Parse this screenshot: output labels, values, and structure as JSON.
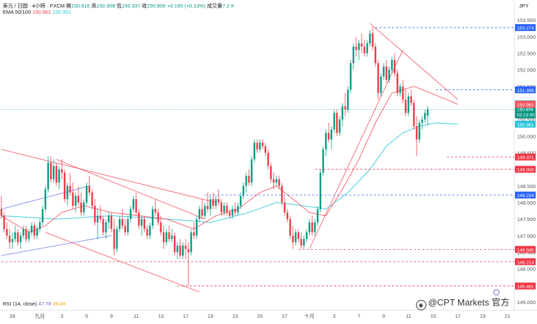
{
  "header": {
    "symbol_line": "美元 / 日圆 · 4小時 · FXCM",
    "open_label": "開",
    "open": "150.616",
    "high_label": "高",
    "high": "150.908",
    "low_label": "低",
    "low": "150.337",
    "close_label": "收",
    "close": "150.806",
    "change": "+0.190 (+0.13%)",
    "volume_label": "成交量",
    "volume": "7.2 K",
    "ema_label": "EMA 50/100",
    "ema50": "150.961",
    "ema100": "150.361",
    "rsi_label": "RSI (14, close)",
    "rsi_value": "47.78",
    "rsi_ma": "39.49",
    "currency": "JPY"
  },
  "watermark": {
    "text": "@CPT Markets 官方"
  },
  "colors": {
    "up": "#089981",
    "down": "#f23645",
    "ema50": "#f7525f",
    "ema100": "#26c6da",
    "trend_red": "#f23645",
    "channel_blue": "#5b6ee1",
    "level_blue": "#2962ff",
    "level_red": "#f23645"
  },
  "chart_data": {
    "type": "candlestick",
    "symbol": "USDJPY",
    "ylim": [
      144.75,
      153.65
    ],
    "y_ticks": [
      145.0,
      145.5,
      146.0,
      146.5,
      147.0,
      147.5,
      148.0,
      148.5,
      149.0,
      149.5,
      150.0,
      150.5,
      151.0,
      151.5,
      152.0,
      152.5,
      153.0,
      153.5
    ],
    "x_ticks": [
      {
        "label": "28",
        "i": 4
      },
      {
        "label": "九月",
        "i": 14
      },
      {
        "label": "3",
        "i": 22
      },
      {
        "label": "5",
        "i": 31
      },
      {
        "label": "9",
        "i": 40
      },
      {
        "label": "11",
        "i": 49
      },
      {
        "label": "13",
        "i": 58
      },
      {
        "label": "17",
        "i": 67
      },
      {
        "label": "19",
        "i": 76
      },
      {
        "label": "23",
        "i": 85
      },
      {
        "label": "25",
        "i": 94
      },
      {
        "label": "27",
        "i": 103
      },
      {
        "label": "十月",
        "i": 112
      },
      {
        "label": "3",
        "i": 121
      },
      {
        "label": "7",
        "i": 130
      },
      {
        "label": "9",
        "i": 139
      },
      {
        "label": "11",
        "i": 148
      },
      {
        "label": "15",
        "i": 157
      },
      {
        "label": "17",
        "i": 166
      },
      {
        "label": "19",
        "i": 175
      },
      {
        "label": "21",
        "i": 184
      }
    ],
    "candles": [
      [
        147.8,
        148.2,
        147.5,
        147.6
      ],
      [
        147.6,
        147.7,
        147.1,
        147.2
      ],
      [
        147.2,
        147.4,
        146.9,
        147.0
      ],
      [
        147.0,
        147.2,
        146.6,
        146.8
      ],
      [
        146.8,
        147.1,
        146.6,
        146.9
      ],
      [
        146.9,
        147.3,
        146.8,
        147.1
      ],
      [
        147.1,
        147.2,
        146.7,
        146.8
      ],
      [
        146.8,
        147.1,
        146.6,
        147.0
      ],
      [
        147.0,
        147.3,
        146.9,
        147.2
      ],
      [
        147.2,
        147.3,
        146.8,
        146.9
      ],
      [
        146.9,
        147.2,
        146.8,
        147.1
      ],
      [
        147.1,
        147.4,
        147.0,
        147.3
      ],
      [
        147.3,
        147.4,
        146.9,
        147.0
      ],
      [
        147.0,
        147.3,
        146.9,
        147.2
      ],
      [
        147.2,
        147.5,
        147.1,
        147.4
      ],
      [
        147.4,
        147.9,
        147.3,
        147.8
      ],
      [
        147.8,
        148.5,
        147.7,
        148.4
      ],
      [
        148.4,
        149.4,
        148.3,
        149.2
      ],
      [
        149.2,
        149.4,
        148.6,
        148.7
      ],
      [
        148.7,
        149.3,
        148.6,
        149.1
      ],
      [
        149.1,
        149.2,
        148.5,
        148.6
      ],
      [
        148.6,
        149.1,
        148.4,
        149.0
      ],
      [
        149.0,
        149.3,
        148.7,
        148.9
      ],
      [
        148.9,
        149.0,
        148.0,
        148.1
      ],
      [
        148.1,
        148.6,
        147.9,
        148.5
      ],
      [
        148.5,
        148.9,
        148.2,
        148.3
      ],
      [
        148.3,
        148.6,
        147.8,
        147.9
      ],
      [
        147.9,
        148.3,
        147.7,
        148.2
      ],
      [
        148.2,
        148.5,
        147.9,
        148.0
      ],
      [
        148.0,
        148.3,
        147.6,
        147.7
      ],
      [
        147.7,
        148.1,
        147.6,
        148.0
      ],
      [
        148.0,
        148.6,
        147.9,
        148.5
      ],
      [
        148.5,
        148.8,
        148.2,
        148.3
      ],
      [
        148.3,
        148.4,
        147.8,
        147.9
      ],
      [
        147.9,
        148.1,
        147.3,
        147.4
      ],
      [
        147.4,
        147.8,
        146.9,
        147.6
      ],
      [
        147.6,
        147.9,
        147.4,
        147.5
      ],
      [
        147.5,
        147.6,
        147.0,
        147.1
      ],
      [
        147.1,
        147.5,
        146.9,
        147.4
      ],
      [
        147.4,
        147.7,
        147.2,
        147.6
      ],
      [
        147.6,
        147.7,
        147.1,
        147.2
      ],
      [
        147.2,
        147.5,
        146.4,
        146.6
      ],
      [
        146.6,
        147.3,
        146.5,
        147.2
      ],
      [
        147.2,
        147.6,
        147.1,
        147.5
      ],
      [
        147.5,
        147.8,
        147.2,
        147.3
      ],
      [
        147.3,
        147.5,
        147.0,
        147.1
      ],
      [
        147.1,
        147.6,
        147.0,
        147.5
      ],
      [
        147.5,
        147.9,
        147.4,
        147.8
      ],
      [
        147.8,
        148.2,
        147.7,
        148.1
      ],
      [
        148.1,
        148.3,
        147.6,
        147.7
      ],
      [
        147.7,
        147.8,
        147.2,
        147.3
      ],
      [
        147.3,
        147.6,
        147.0,
        147.5
      ],
      [
        147.5,
        147.6,
        147.1,
        147.2
      ],
      [
        147.2,
        147.3,
        146.9,
        147.0
      ],
      [
        147.0,
        147.4,
        146.9,
        147.3
      ],
      [
        147.3,
        147.9,
        147.2,
        147.8
      ],
      [
        147.8,
        148.1,
        147.6,
        147.7
      ],
      [
        147.7,
        147.8,
        147.3,
        147.4
      ],
      [
        147.4,
        147.6,
        147.0,
        147.1
      ],
      [
        147.1,
        147.3,
        146.6,
        146.8
      ],
      [
        146.8,
        147.2,
        146.7,
        147.1
      ],
      [
        147.1,
        147.3,
        146.8,
        146.9
      ],
      [
        146.9,
        147.2,
        146.8,
        147.0
      ],
      [
        147.0,
        147.1,
        146.4,
        146.5
      ],
      [
        146.5,
        146.8,
        146.3,
        146.7
      ],
      [
        146.7,
        146.9,
        146.3,
        146.4
      ],
      [
        146.4,
        146.8,
        146.3,
        146.7
      ],
      [
        146.7,
        146.9,
        146.3,
        146.6
      ],
      [
        146.6,
        146.8,
        145.5,
        146.5
      ],
      [
        146.5,
        147.2,
        146.4,
        147.1
      ],
      [
        147.1,
        147.4,
        146.9,
        147.0
      ],
      [
        147.0,
        147.6,
        146.9,
        147.5
      ],
      [
        147.5,
        147.9,
        147.4,
        147.8
      ],
      [
        147.8,
        148.1,
        147.5,
        147.6
      ],
      [
        147.6,
        148.0,
        147.5,
        147.9
      ],
      [
        147.9,
        148.3,
        147.7,
        147.8
      ],
      [
        147.8,
        148.2,
        147.6,
        148.1
      ],
      [
        148.1,
        148.3,
        147.8,
        147.9
      ],
      [
        147.9,
        148.2,
        147.8,
        148.1
      ],
      [
        148.1,
        148.4,
        147.9,
        148.0
      ],
      [
        148.0,
        148.1,
        147.6,
        147.7
      ],
      [
        147.7,
        148.0,
        147.6,
        147.9
      ],
      [
        147.9,
        148.0,
        147.6,
        147.7
      ],
      [
        147.7,
        147.8,
        147.5,
        147.6
      ],
      [
        147.6,
        147.9,
        147.5,
        147.8
      ],
      [
        147.8,
        148.0,
        147.6,
        147.7
      ],
      [
        147.7,
        148.0,
        147.6,
        147.9
      ],
      [
        147.9,
        148.3,
        147.8,
        148.2
      ],
      [
        148.2,
        148.6,
        148.1,
        148.5
      ],
      [
        148.5,
        148.9,
        148.3,
        148.8
      ],
      [
        148.8,
        149.0,
        148.5,
        148.6
      ],
      [
        148.6,
        149.4,
        148.5,
        149.3
      ],
      [
        149.3,
        149.9,
        149.2,
        149.8
      ],
      [
        149.8,
        149.9,
        149.5,
        149.6
      ],
      [
        149.6,
        149.9,
        149.5,
        149.8
      ],
      [
        149.8,
        149.9,
        149.6,
        149.7
      ],
      [
        149.7,
        149.8,
        149.4,
        149.5
      ],
      [
        149.5,
        149.6,
        149.0,
        149.1
      ],
      [
        149.1,
        149.2,
        148.6,
        148.7
      ],
      [
        148.7,
        148.9,
        148.4,
        148.6
      ],
      [
        148.6,
        148.8,
        148.5,
        148.7
      ],
      [
        148.7,
        148.8,
        148.4,
        148.5
      ],
      [
        148.5,
        148.6,
        147.9,
        148.0
      ],
      [
        148.0,
        148.2,
        147.6,
        147.7
      ],
      [
        147.7,
        147.8,
        147.4,
        147.5
      ],
      [
        147.5,
        147.6,
        146.9,
        147.0
      ],
      [
        147.0,
        147.3,
        146.6,
        146.8
      ],
      [
        146.8,
        147.2,
        146.7,
        147.1
      ],
      [
        147.1,
        147.2,
        146.8,
        146.9
      ],
      [
        146.9,
        147.1,
        146.6,
        146.7
      ],
      [
        146.7,
        147.0,
        146.6,
        146.9
      ],
      [
        146.9,
        147.2,
        146.8,
        147.1
      ],
      [
        147.1,
        147.5,
        147.0,
        147.4
      ],
      [
        147.4,
        147.6,
        147.0,
        147.1
      ],
      [
        147.1,
        147.5,
        147.0,
        147.4
      ],
      [
        147.4,
        147.9,
        147.3,
        147.8
      ],
      [
        147.8,
        149.0,
        147.7,
        148.9
      ],
      [
        148.9,
        149.7,
        148.8,
        149.6
      ],
      [
        149.6,
        150.2,
        149.4,
        150.1
      ],
      [
        150.1,
        150.4,
        149.8,
        149.9
      ],
      [
        149.9,
        150.3,
        149.6,
        150.2
      ],
      [
        150.2,
        150.8,
        150.1,
        150.7
      ],
      [
        150.7,
        150.8,
        150.0,
        150.1
      ],
      [
        150.1,
        150.6,
        150.0,
        150.5
      ],
      [
        150.5,
        151.0,
        150.3,
        150.9
      ],
      [
        150.9,
        151.3,
        150.6,
        150.8
      ],
      [
        150.8,
        151.5,
        150.7,
        151.4
      ],
      [
        151.4,
        152.3,
        151.3,
        152.2
      ],
      [
        152.2,
        152.8,
        152.0,
        152.7
      ],
      [
        152.7,
        153.0,
        152.4,
        152.6
      ],
      [
        152.6,
        152.9,
        152.3,
        152.8
      ],
      [
        152.8,
        153.1,
        152.5,
        152.7
      ],
      [
        152.7,
        152.9,
        152.4,
        152.5
      ],
      [
        152.5,
        152.9,
        152.4,
        152.8
      ],
      [
        152.8,
        153.2,
        152.7,
        153.1
      ],
      [
        153.1,
        153.3,
        152.6,
        152.7
      ],
      [
        152.7,
        152.8,
        152.1,
        152.2
      ],
      [
        152.2,
        152.3,
        151.1,
        151.3
      ],
      [
        151.3,
        151.9,
        151.2,
        151.8
      ],
      [
        151.8,
        152.2,
        151.7,
        152.1
      ],
      [
        152.1,
        152.3,
        151.6,
        151.7
      ],
      [
        151.7,
        152.1,
        151.6,
        152.0
      ],
      [
        152.0,
        152.4,
        151.9,
        152.3
      ],
      [
        152.3,
        152.5,
        151.8,
        151.9
      ],
      [
        151.9,
        152.0,
        151.2,
        151.3
      ],
      [
        151.3,
        151.6,
        151.2,
        151.5
      ],
      [
        151.5,
        151.7,
        151.0,
        151.1
      ],
      [
        151.1,
        151.4,
        150.6,
        150.7
      ],
      [
        150.7,
        151.3,
        150.6,
        151.2
      ],
      [
        151.2,
        151.4,
        150.9,
        151.0
      ],
      [
        151.0,
        151.1,
        150.2,
        150.3
      ],
      [
        150.3,
        150.6,
        149.4,
        149.9
      ],
      [
        149.9,
        150.5,
        149.8,
        150.4
      ],
      [
        150.4,
        150.6,
        150.2,
        150.5
      ],
      [
        150.5,
        150.8,
        150.4,
        150.7
      ],
      [
        150.616,
        150.908,
        150.337,
        150.806
      ]
    ],
    "ema50": [
      [
        0,
        147.6
      ],
      [
        10,
        147.1
      ],
      [
        16,
        147.3
      ],
      [
        22,
        147.7
      ],
      [
        30,
        147.9
      ],
      [
        40,
        147.7
      ],
      [
        50,
        147.6
      ],
      [
        60,
        147.5
      ],
      [
        70,
        147.2
      ],
      [
        78,
        147.6
      ],
      [
        86,
        147.8
      ],
      [
        94,
        148.3
      ],
      [
        100,
        148.5
      ],
      [
        106,
        148.1
      ],
      [
        112,
        147.7
      ],
      [
        118,
        147.6
      ],
      [
        124,
        148.4
      ],
      [
        130,
        149.3
      ],
      [
        136,
        150.4
      ],
      [
        142,
        151.3
      ],
      [
        150,
        151.5
      ],
      [
        156,
        151.3
      ],
      [
        162,
        151.1
      ],
      [
        166,
        150.96
      ]
    ],
    "ema100": [
      [
        0,
        147.6
      ],
      [
        20,
        147.5
      ],
      [
        40,
        147.6
      ],
      [
        60,
        147.5
      ],
      [
        76,
        147.4
      ],
      [
        90,
        147.7
      ],
      [
        100,
        148.0
      ],
      [
        110,
        147.9
      ],
      [
        118,
        147.8
      ],
      [
        126,
        148.3
      ],
      [
        134,
        149.0
      ],
      [
        140,
        149.7
      ],
      [
        146,
        150.1
      ],
      [
        152,
        150.3
      ],
      [
        158,
        150.4
      ],
      [
        166,
        150.36
      ]
    ],
    "levels": [
      {
        "price": 153.274,
        "label": "153.274",
        "kind": "blue",
        "from": 136
      },
      {
        "price": 151.398,
        "label": "151.398",
        "kind": "blue",
        "from": 158
      },
      {
        "price": 150.806,
        "label": "USDJPY",
        "sub": "150.806",
        "sub2": "02:13:40",
        "kind": "price"
      },
      {
        "price": 150.961,
        "label": "150.961",
        "kind": "ema50"
      },
      {
        "price": 150.361,
        "label": "150.361",
        "kind": "ema100"
      },
      {
        "price": 149.371,
        "label": "149.371",
        "kind": "red",
        "from": 162
      },
      {
        "price": 149.0,
        "label": "149.000",
        "kind": "red",
        "from": 114
      },
      {
        "price": 148.224,
        "label": "148.224",
        "kind": "blue",
        "from": 74
      },
      {
        "price": 146.585,
        "label": "146.585",
        "kind": "red",
        "from": 108
      },
      {
        "price": 146.214,
        "label": "146.214",
        "kind": "red",
        "from": 0
      },
      {
        "price": 145.481,
        "label": "145.481",
        "kind": "red",
        "from": 64
      }
    ],
    "trendlines": [
      {
        "color": "red",
        "points": [
          [
            0,
            149.6
          ],
          [
            78,
            148.0
          ]
        ]
      },
      {
        "color": "red",
        "points": [
          [
            20,
            149.3
          ],
          [
            74,
            147.5
          ]
        ]
      },
      {
        "color": "red",
        "points": [
          [
            16,
            147.1
          ],
          [
            72,
            145.3
          ]
        ]
      },
      {
        "color": "blue",
        "points": [
          [
            0,
            147.8
          ],
          [
            32,
            148.5
          ]
        ]
      },
      {
        "color": "blue",
        "points": [
          [
            0,
            146.4
          ],
          [
            40,
            147.0
          ]
        ]
      },
      {
        "color": "red",
        "points": [
          [
            112,
            146.6
          ],
          [
            146,
            152.6
          ]
        ]
      },
      {
        "color": "red",
        "points": [
          [
            134,
            153.4
          ],
          [
            166,
            151.1
          ]
        ]
      }
    ]
  }
}
